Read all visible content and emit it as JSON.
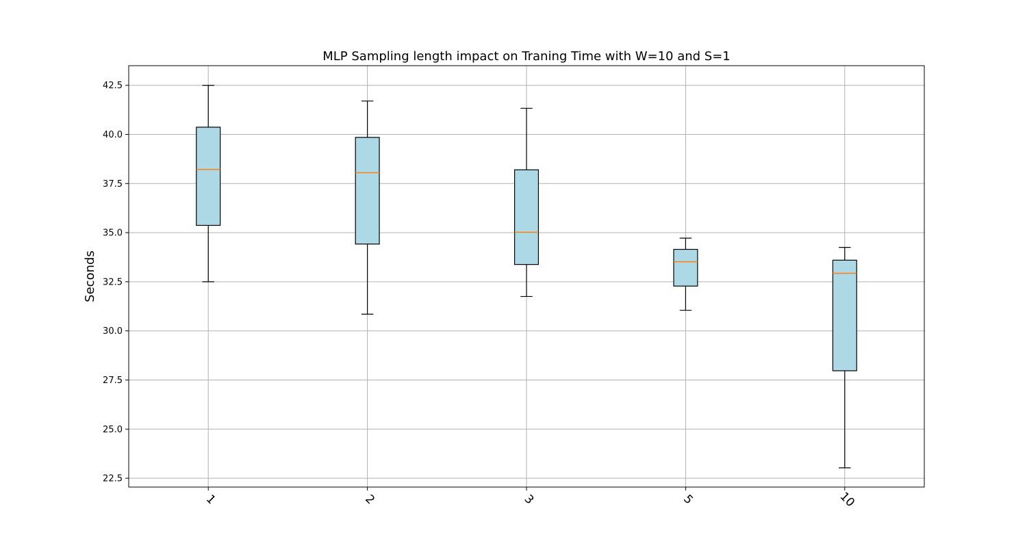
{
  "chart_data": {
    "type": "box",
    "title": "MLP Sampling length impact on Traning Time with W=10 and S=1",
    "xlabel": "",
    "ylabel": "Seconds",
    "categories": [
      "1",
      "2",
      "3",
      "5",
      "10"
    ],
    "ylim": [
      22.05,
      43.5
    ],
    "yticks": [
      22.5,
      25.0,
      27.5,
      30.0,
      32.5,
      35.0,
      37.5,
      40.0,
      42.5
    ],
    "ytick_labels": [
      "22.5",
      "25.0",
      "27.5",
      "30.0",
      "32.5",
      "35.0",
      "37.5",
      "40.0",
      "42.5"
    ],
    "grid": true,
    "x_tick_rotation": -45,
    "boxes": [
      {
        "category": "1",
        "whisker_low": 32.5,
        "q1": 35.37,
        "median": 38.22,
        "q3": 40.37,
        "whisker_high": 42.5
      },
      {
        "category": "2",
        "whisker_low": 30.85,
        "q1": 34.42,
        "median": 38.05,
        "q3": 39.85,
        "whisker_high": 41.7
      },
      {
        "category": "3",
        "whisker_low": 31.75,
        "q1": 33.38,
        "median": 35.02,
        "q3": 38.2,
        "whisker_high": 41.33
      },
      {
        "category": "5",
        "whisker_low": 31.05,
        "q1": 32.28,
        "median": 33.52,
        "q3": 34.15,
        "whisker_high": 34.72
      },
      {
        "category": "10",
        "whisker_low": 23.03,
        "q1": 27.97,
        "median": 32.93,
        "q3": 33.6,
        "whisker_high": 34.25
      }
    ],
    "colors": {
      "box_fill": "#add8e6",
      "box_edge": "#000000",
      "median": "#ff7f0e",
      "grid": "#b0b0b0",
      "axes": "#000000"
    }
  }
}
